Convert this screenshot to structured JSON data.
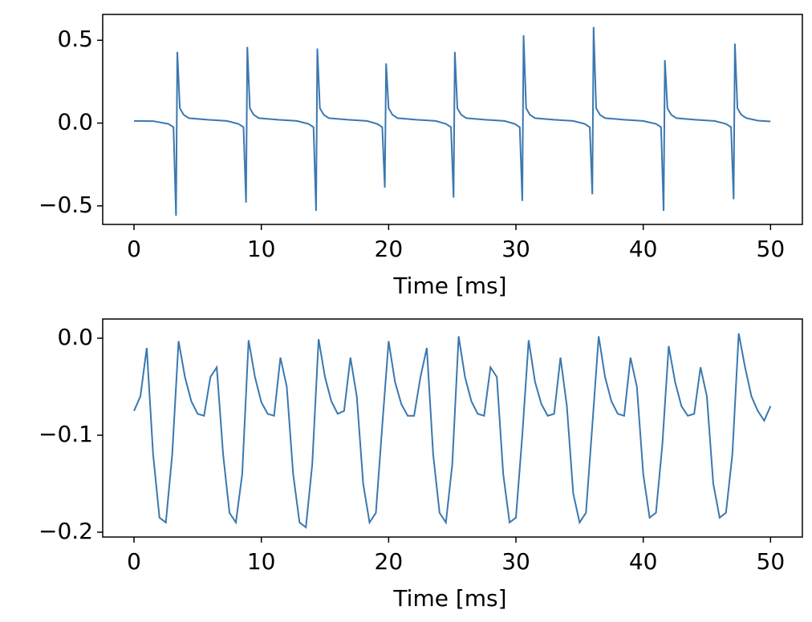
{
  "chart_data": [
    {
      "type": "line",
      "xlabel": "Time [ms]",
      "color": "#3a78b0",
      "x": [
        0,
        1.5,
        2.7,
        3.1,
        3.3,
        3.4,
        3.6,
        3.9,
        4.3,
        5.8,
        7.3,
        8.2,
        8.6,
        8.8,
        8.9,
        9.1,
        9.4,
        9.8,
        11.3,
        12.8,
        13.7,
        14.1,
        14.3,
        14.4,
        14.6,
        14.9,
        15.3,
        16.8,
        18.3,
        19.1,
        19.5,
        19.7,
        19.8,
        20.0,
        20.3,
        20.7,
        22.2,
        23.7,
        24.5,
        24.9,
        25.1,
        25.2,
        25.4,
        25.7,
        26.1,
        27.6,
        29.1,
        29.9,
        30.3,
        30.5,
        30.6,
        30.8,
        31.1,
        31.5,
        33.0,
        34.5,
        35.4,
        35.8,
        36.0,
        36.1,
        36.3,
        36.6,
        37.0,
        38.5,
        40.0,
        41.0,
        41.4,
        41.6,
        41.7,
        41.9,
        42.2,
        42.6,
        44.1,
        45.6,
        46.5,
        46.9,
        47.1,
        47.2,
        47.4,
        47.7,
        48.1,
        49.0,
        50.0
      ],
      "values": [
        0.013,
        0.012,
        -0.005,
        -0.025,
        -0.56,
        0.43,
        0.09,
        0.05,
        0.03,
        0.02,
        0.013,
        -0.005,
        -0.025,
        -0.48,
        0.46,
        0.09,
        0.05,
        0.03,
        0.02,
        0.013,
        -0.005,
        -0.025,
        -0.53,
        0.45,
        0.09,
        0.05,
        0.03,
        0.02,
        0.013,
        -0.005,
        -0.025,
        -0.39,
        0.36,
        0.09,
        0.05,
        0.03,
        0.02,
        0.013,
        -0.005,
        -0.025,
        -0.45,
        0.43,
        0.09,
        0.05,
        0.03,
        0.02,
        0.013,
        -0.005,
        -0.025,
        -0.47,
        0.53,
        0.09,
        0.05,
        0.03,
        0.02,
        0.013,
        -0.005,
        -0.025,
        -0.43,
        0.58,
        0.09,
        0.05,
        0.03,
        0.02,
        0.013,
        -0.005,
        -0.025,
        -0.53,
        0.38,
        0.09,
        0.05,
        0.03,
        0.02,
        0.013,
        -0.005,
        -0.025,
        -0.46,
        0.48,
        0.09,
        0.05,
        0.03,
        0.015,
        0.01
      ],
      "xlim": [
        -2.46,
        52.5
      ],
      "ylim": [
        -0.612,
        0.656
      ],
      "xticks": [
        0,
        10,
        20,
        30,
        40,
        50
      ],
      "yticks": [
        {
          "value": -0.5,
          "label": "−0.5"
        },
        {
          "value": 0,
          "label": "0.0"
        },
        0.5
      ]
    },
    {
      "type": "line",
      "xlabel": "Time [ms]",
      "color": "#3a78b0",
      "x": [
        0,
        0.5,
        1,
        1.5,
        2,
        2.5,
        3,
        3.5,
        4,
        4.5,
        5,
        5.5,
        6,
        6.5,
        7,
        7.5,
        8,
        8.5,
        9,
        9.5,
        10,
        10.5,
        11,
        11.5,
        12,
        12.5,
        13,
        13.5,
        14,
        14.5,
        15,
        15.5,
        16,
        16.5,
        17,
        17.5,
        18,
        18.5,
        19,
        19.5,
        20,
        20.5,
        21,
        21.5,
        22,
        22.5,
        23,
        23.5,
        24,
        24.5,
        25,
        25.5,
        26,
        26.5,
        27,
        27.5,
        28,
        28.5,
        29,
        29.5,
        30,
        30.5,
        31,
        31.5,
        32,
        32.5,
        33,
        33.5,
        34,
        34.5,
        35,
        35.5,
        36,
        36.5,
        37,
        37.5,
        38,
        38.5,
        39,
        39.5,
        40,
        40.5,
        41,
        41.5,
        42,
        42.5,
        43,
        43.5,
        44,
        44.5,
        45,
        45.5,
        46,
        46.5,
        47,
        47.5,
        48,
        48.5,
        49,
        49.5,
        50
      ],
      "values": [
        -0.075,
        -0.06,
        -0.01,
        -0.12,
        -0.185,
        -0.19,
        -0.12,
        -0.003,
        -0.04,
        -0.065,
        -0.078,
        -0.08,
        -0.04,
        -0.03,
        -0.12,
        -0.18,
        -0.19,
        -0.14,
        -0.002,
        -0.04,
        -0.066,
        -0.078,
        -0.08,
        -0.02,
        -0.05,
        -0.14,
        -0.19,
        -0.195,
        -0.13,
        -0.001,
        -0.04,
        -0.065,
        -0.078,
        -0.075,
        -0.02,
        -0.06,
        -0.15,
        -0.19,
        -0.18,
        -0.09,
        -0.003,
        -0.045,
        -0.068,
        -0.08,
        -0.08,
        -0.04,
        -0.01,
        -0.12,
        -0.18,
        -0.19,
        -0.13,
        0.002,
        -0.04,
        -0.065,
        -0.078,
        -0.08,
        -0.03,
        -0.04,
        -0.14,
        -0.19,
        -0.185,
        -0.1,
        -0.002,
        -0.045,
        -0.068,
        -0.08,
        -0.078,
        -0.02,
        -0.07,
        -0.16,
        -0.19,
        -0.18,
        -0.09,
        0.002,
        -0.04,
        -0.065,
        -0.078,
        -0.08,
        -0.02,
        -0.05,
        -0.14,
        -0.185,
        -0.18,
        -0.11,
        -0.008,
        -0.045,
        -0.07,
        -0.08,
        -0.078,
        -0.03,
        -0.06,
        -0.15,
        -0.185,
        -0.18,
        -0.12,
        0.005,
        -0.03,
        -0.06,
        -0.075,
        -0.085,
        -0.07
      ],
      "xlim": [
        -2.46,
        52.5
      ],
      "ylim": [
        -0.205,
        0.0198
      ],
      "xticks": [
        0,
        10,
        20,
        30,
        40,
        50
      ],
      "yticks": [
        {
          "value": -0.2,
          "label": "−0.2"
        },
        {
          "value": -0.1,
          "label": "−0.1"
        },
        {
          "value": 0,
          "label": "0.0"
        }
      ]
    }
  ]
}
